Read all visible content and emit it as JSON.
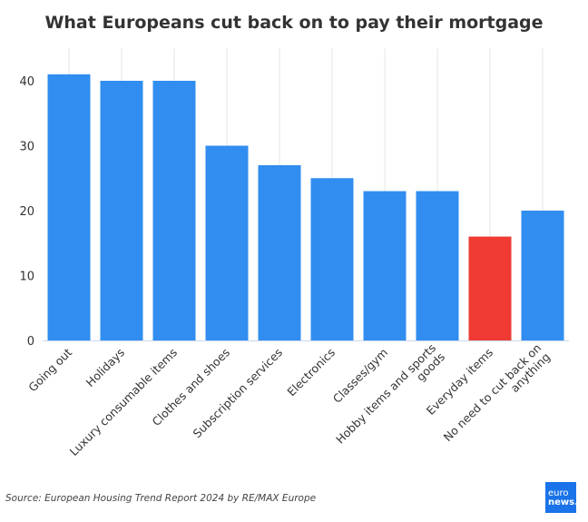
{
  "chart_data": {
    "type": "bar",
    "title": "What Europeans cut back on to pay their mortgage",
    "categories": [
      "Going out",
      "Holidays",
      "Luxury consumable items",
      "Clothes and shoes",
      "Subscription services",
      "Electronics",
      "Classes/gym",
      "Hobby items and sports goods",
      "Everyday items",
      "No need to cut back on anything"
    ],
    "category_lines": [
      [
        "Going out"
      ],
      [
        "Holidays"
      ],
      [
        "Luxury consumable items"
      ],
      [
        "Clothes and shoes"
      ],
      [
        "Subscription services"
      ],
      [
        "Electronics"
      ],
      [
        "Classes/gym"
      ],
      [
        "Hobby items and sports",
        "goods"
      ],
      [
        "Everyday items"
      ],
      [
        "No need to cut back on",
        "anything"
      ]
    ],
    "values": [
      41,
      40,
      40,
      30,
      27,
      25,
      23,
      23,
      16,
      20
    ],
    "highlight_index": 8,
    "colors": {
      "bar": "#318def",
      "highlight": "#ef3b33",
      "grid": "#e6e6e6",
      "axis": "#ccd6eb"
    },
    "ylim": [
      0,
      45
    ],
    "yticks": [
      0,
      10,
      20,
      30,
      40
    ],
    "xlabel": "",
    "ylabel": "",
    "grid": true,
    "legend": "none"
  },
  "footer": {
    "source": "Source: European Housing Trend Report 2024 by RE/MAX Europe",
    "logo_top": "euro",
    "logo_bottom": "news."
  }
}
